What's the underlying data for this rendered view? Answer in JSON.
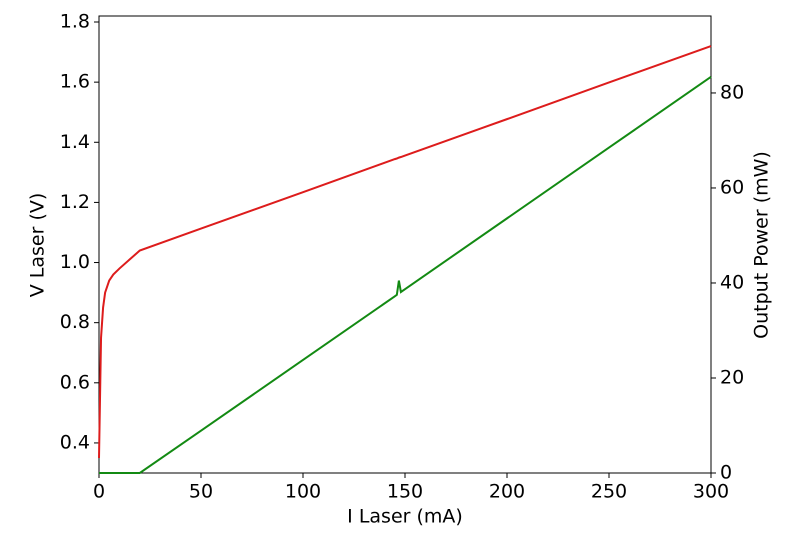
{
  "chart_data": {
    "type": "line",
    "xlabel": "I Laser (mA)",
    "ylabel": "V Laser (V)",
    "y2label": "Output Power (mW)",
    "x": [
      0,
      1,
      2,
      3,
      5,
      7,
      10,
      15,
      20,
      50,
      100,
      145,
      146,
      147,
      148,
      150,
      200,
      250,
      300
    ],
    "series": [
      {
        "name": "V Laser",
        "color": "#dd1c1c",
        "axis": "y",
        "values": [
          0.35,
          0.75,
          0.85,
          0.9,
          0.94,
          0.96,
          0.98,
          1.01,
          1.04,
          1.113,
          1.234,
          1.344,
          1.346,
          1.349,
          1.351,
          1.356,
          1.477,
          1.599,
          1.72
        ]
      },
      {
        "name": "Output Power",
        "color": "#138a13",
        "axis": "y2",
        "values": [
          0,
          0,
          0,
          0,
          0,
          0,
          0,
          0,
          0,
          8.9,
          23.8,
          37.2,
          37.5,
          40.5,
          38.1,
          38.7,
          53.6,
          68.5,
          83.4
        ]
      }
    ],
    "xlim": [
      0,
      300
    ],
    "xticks": [
      0,
      50,
      100,
      150,
      200,
      250,
      300
    ],
    "ylim": [
      0.3,
      1.82
    ],
    "yticks": [
      0.4,
      0.6,
      0.8,
      {
        "value": 1,
        "label": "1.0"
      },
      1.2,
      1.4,
      1.6,
      1.8
    ],
    "y2lim": [
      0,
      96.2
    ],
    "y2ticks": [
      0,
      20,
      40,
      60,
      80
    ]
  }
}
